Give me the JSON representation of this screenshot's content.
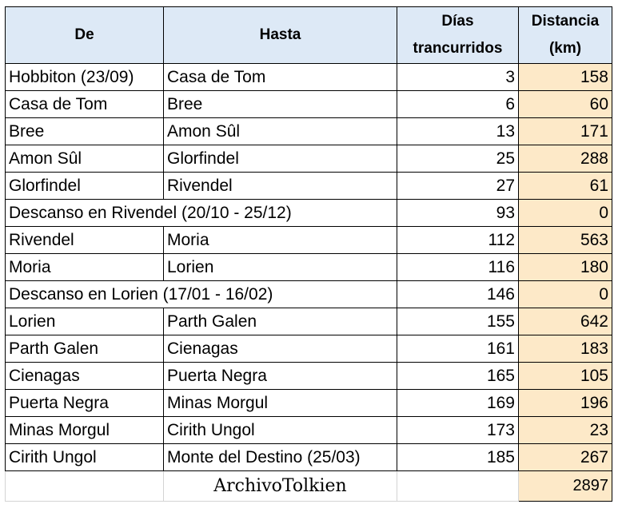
{
  "table": {
    "header": {
      "de": "De",
      "hasta": "Hasta",
      "dias": "Días trancurridos",
      "distancia": "Distancia (km)"
    },
    "rows": [
      {
        "de": "Hobbiton (23/09)",
        "hasta": "Casa de Tom",
        "dias": 3,
        "distancia": 158
      },
      {
        "de": "Casa de Tom",
        "hasta": "Bree",
        "dias": 6,
        "distancia": 60
      },
      {
        "de": "Bree",
        "hasta": "Amon Sûl",
        "dias": 13,
        "distancia": 171
      },
      {
        "de": "Amon Sûl",
        "hasta": "Glorfindel",
        "dias": 25,
        "distancia": 288
      },
      {
        "de": "Glorfindel",
        "hasta": "Rivendel",
        "dias": 27,
        "distancia": 61
      },
      {
        "de": "Descanso en Rivendel (20/10 - 25/12)",
        "dias": 93,
        "distancia": 0
      },
      {
        "de": "Rivendel",
        "hasta": "Moria",
        "dias": 112,
        "distancia": 563
      },
      {
        "de": "Moria",
        "hasta": "Lorien",
        "dias": 116,
        "distancia": 180
      },
      {
        "de": "Descanso en Lorien (17/01 - 16/02)",
        "dias": 146,
        "distancia": 0
      },
      {
        "de": "Lorien",
        "hasta": "Parth Galen",
        "dias": 155,
        "distancia": 642
      },
      {
        "de": "Parth Galen",
        "hasta": "Cienagas",
        "dias": 161,
        "distancia": 183
      },
      {
        "de": "Cienagas",
        "hasta": "Puerta Negra",
        "dias": 165,
        "distancia": 105
      },
      {
        "de": "Puerta Negra",
        "hasta": "Minas Morgul",
        "dias": 169,
        "distancia": 196
      },
      {
        "de": "Minas Morgul",
        "hasta": "Cirith Ungol",
        "dias": 173,
        "distancia": 23
      },
      {
        "de": "Cirith Ungol",
        "hasta": "Monte del Destino (25/03)",
        "dias": 185,
        "distancia": 267
      }
    ],
    "footer": {
      "credit": "ArchivoTolkien",
      "total": 2897
    }
  }
}
